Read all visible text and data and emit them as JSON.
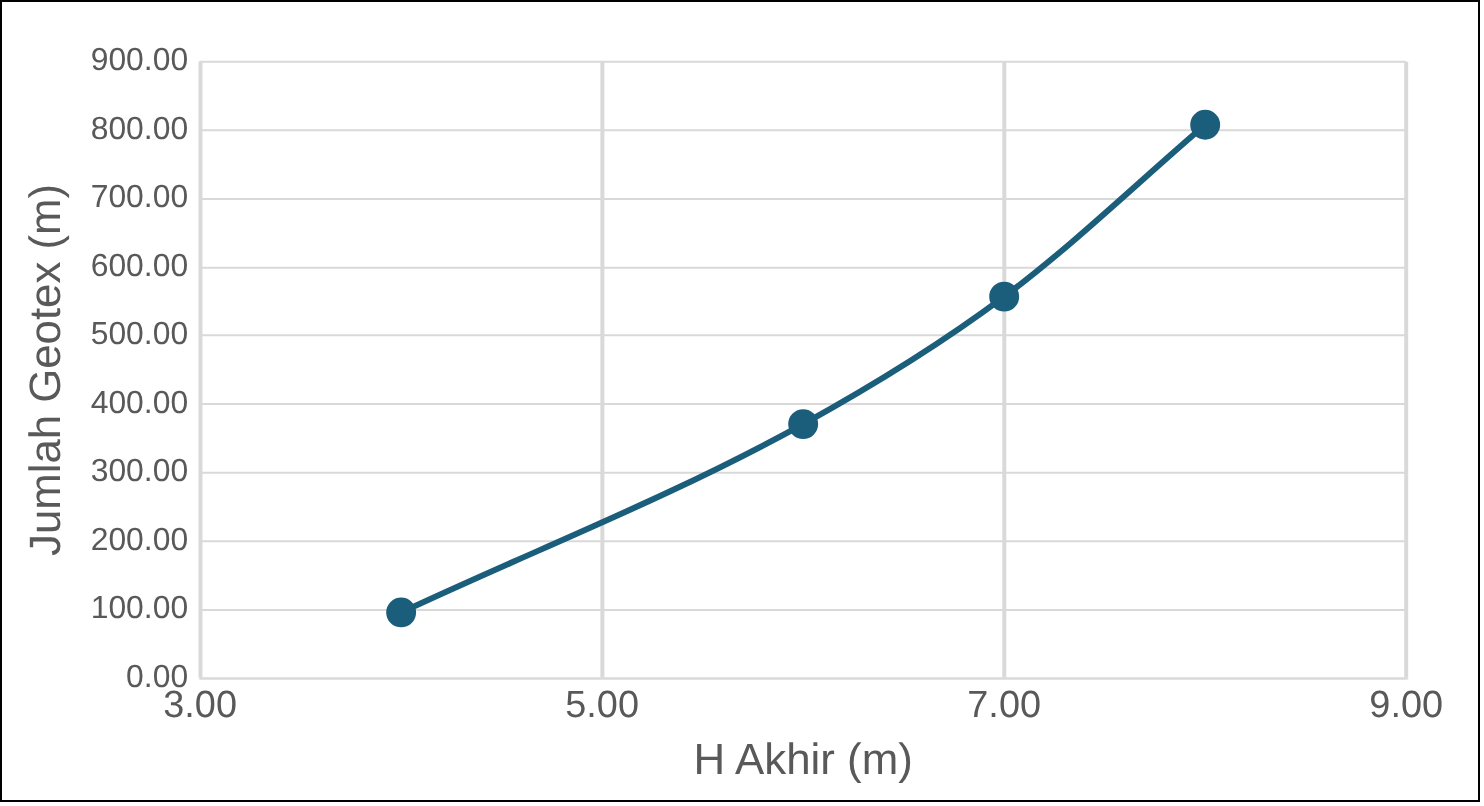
{
  "chart_data": {
    "type": "line",
    "xlabel": "H Akhir (m)",
    "ylabel": "Jumlah Geotex (m)",
    "x": [
      4,
      6,
      7,
      8
    ],
    "series": [
      {
        "color": "#1b5e7b",
        "values": [
          96,
          371,
          557,
          808
        ]
      }
    ],
    "xlim": [
      3,
      9
    ],
    "xticks": [
      {
        "value": 3,
        "label": "3.00"
      },
      {
        "value": 5,
        "label": "5.00"
      },
      {
        "value": 7,
        "label": "7.00"
      },
      {
        "value": 9,
        "label": "9.00"
      }
    ],
    "ylim": [
      0,
      900
    ],
    "yticks": [
      {
        "value": 0,
        "label": "0.00"
      },
      {
        "value": 100,
        "label": "100.00"
      },
      {
        "value": 200,
        "label": "200.00"
      },
      {
        "value": 300,
        "label": "300.00"
      },
      {
        "value": 400,
        "label": "400.00"
      },
      {
        "value": 500,
        "label": "500.00"
      },
      {
        "value": 600,
        "label": "600.00"
      },
      {
        "value": 700,
        "label": "700.00"
      },
      {
        "value": 800,
        "label": "800.00"
      },
      {
        "value": 900,
        "label": "900.00"
      }
    ],
    "grid": true,
    "legend": false,
    "marker": "circle",
    "line_style": "solid"
  }
}
